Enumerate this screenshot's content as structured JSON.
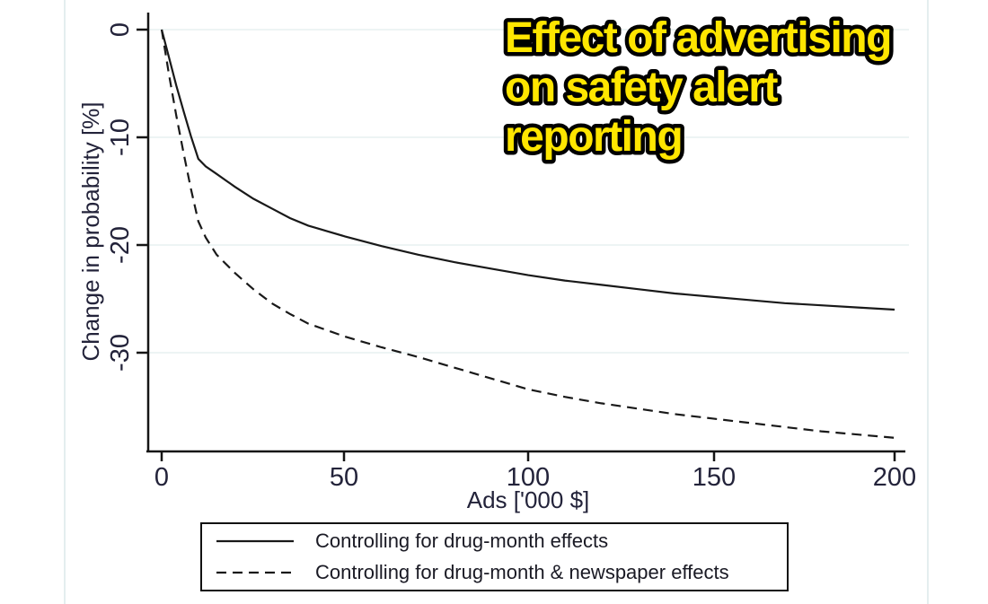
{
  "title": {
    "lines": [
      "Effect of advertising",
      "on safety alert",
      "reporting"
    ]
  },
  "chart_data": {
    "type": "line",
    "title": "Effect of advertising on safety alert reporting",
    "xlabel": "Ads ['000 $]",
    "ylabel": "Change in probability [%]",
    "xlim": [
      0,
      200
    ],
    "ylim": [
      -39,
      1.5
    ],
    "x_ticks": [
      0,
      50,
      100,
      150,
      200
    ],
    "y_ticks": [
      0,
      -10,
      -20,
      -30
    ],
    "grid": "horizontal-only",
    "legend_position": "bottom-outside",
    "series": [
      {
        "name": "Controlling for drug-month effects",
        "style": "solid",
        "x": [
          0,
          2,
          4,
          6,
          8,
          10,
          12,
          15,
          20,
          25,
          30,
          35,
          40,
          45,
          50,
          60,
          70,
          80,
          90,
          100,
          110,
          120,
          130,
          140,
          150,
          160,
          170,
          180,
          190,
          200
        ],
        "y": [
          0,
          -2.6,
          -5.2,
          -7.6,
          -9.9,
          -12.0,
          -12.7,
          -13.4,
          -14.6,
          -15.7,
          -16.6,
          -17.5,
          -18.2,
          -18.7,
          -19.2,
          -20.1,
          -20.9,
          -21.6,
          -22.2,
          -22.8,
          -23.3,
          -23.7,
          -24.1,
          -24.5,
          -24.8,
          -25.1,
          -25.4,
          -25.6,
          -25.8,
          -26.0
        ]
      },
      {
        "name": "Controlling for drug-month & newspaper effects",
        "style": "dashed",
        "x": [
          0,
          2,
          4,
          6,
          8,
          10,
          12,
          15,
          20,
          25,
          30,
          35,
          40,
          45,
          50,
          60,
          70,
          80,
          90,
          100,
          110,
          120,
          130,
          140,
          150,
          160,
          170,
          180,
          190,
          200
        ],
        "y": [
          0,
          -4.2,
          -8.0,
          -11.5,
          -14.8,
          -17.8,
          -19.3,
          -20.9,
          -22.6,
          -24.1,
          -25.4,
          -26.4,
          -27.3,
          -27.9,
          -28.5,
          -29.5,
          -30.4,
          -31.4,
          -32.4,
          -33.4,
          -34.1,
          -34.7,
          -35.2,
          -35.7,
          -36.1,
          -36.5,
          -36.9,
          -37.3,
          -37.6,
          -37.9
        ]
      }
    ]
  },
  "colors": {
    "background": "#ffffff",
    "line": "#191919",
    "axis": "#151515",
    "grid": "#e7f0f0",
    "region_border": "#dce8ea",
    "tick_text": "#23233a",
    "title_fill": "#ffe600",
    "title_outline": "#000000"
  }
}
